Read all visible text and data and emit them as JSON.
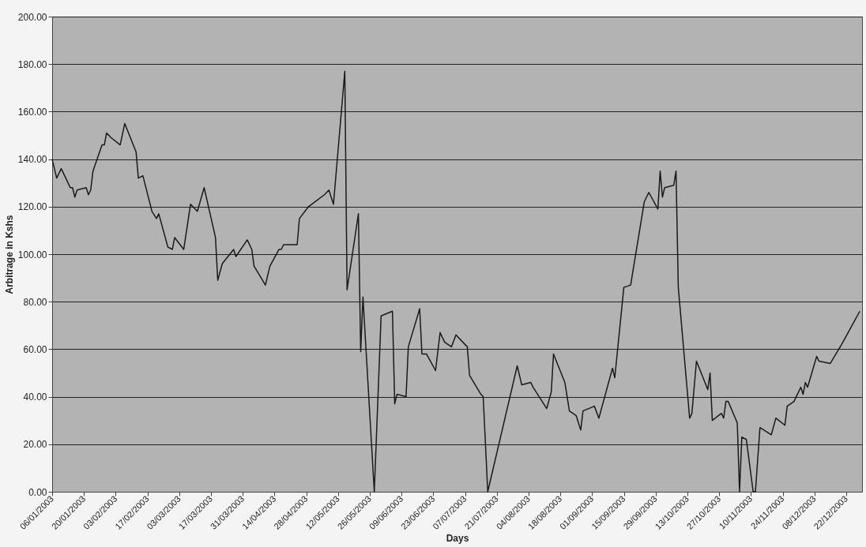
{
  "chart_data": {
    "type": "line",
    "xlabel": "Days",
    "ylabel": "Arbitrage in Kshs",
    "x": [
      "2003-01-06",
      "2003-01-08",
      "2003-01-10",
      "2003-01-12",
      "2003-01-14",
      "2003-01-15",
      "2003-01-16",
      "2003-01-17",
      "2003-01-21",
      "2003-01-22",
      "2003-01-23",
      "2003-01-24",
      "2003-01-28",
      "2003-01-29",
      "2003-01-30",
      "2003-02-01",
      "2003-02-05",
      "2003-02-07",
      "2003-02-12",
      "2003-02-13",
      "2003-02-15",
      "2003-02-19",
      "2003-02-21",
      "2003-02-22",
      "2003-02-26",
      "2003-02-28",
      "2003-03-01",
      "2003-03-05",
      "2003-03-08",
      "2003-03-11",
      "2003-03-14",
      "2003-03-19",
      "2003-03-20",
      "2003-03-22",
      "2003-03-27",
      "2003-03-28",
      "2003-04-02",
      "2003-04-04",
      "2003-04-05",
      "2003-04-10",
      "2003-04-12",
      "2003-04-16",
      "2003-04-17",
      "2003-04-18",
      "2003-04-24",
      "2003-04-25",
      "2003-04-29",
      "2003-05-06",
      "2003-05-08",
      "2003-05-10",
      "2003-05-15",
      "2003-05-16",
      "2003-05-21",
      "2003-05-22",
      "2003-05-23",
      "2003-05-28",
      "2003-05-31",
      "2003-06-05",
      "2003-06-06",
      "2003-06-07",
      "2003-06-11",
      "2003-06-12",
      "2003-06-17",
      "2003-06-18",
      "2003-06-20",
      "2003-06-24",
      "2003-06-26",
      "2003-06-28",
      "2003-07-01",
      "2003-07-03",
      "2003-07-06",
      "2003-07-08",
      "2003-07-09",
      "2003-07-14",
      "2003-07-15",
      "2003-07-17",
      "2003-07-30",
      "2003-08-01",
      "2003-08-05",
      "2003-08-06",
      "2003-08-12",
      "2003-08-14",
      "2003-08-15",
      "2003-08-20",
      "2003-08-22",
      "2003-08-25",
      "2003-08-27",
      "2003-08-28",
      "2003-09-02",
      "2003-09-04",
      "2003-09-10",
      "2003-09-11",
      "2003-09-15",
      "2003-09-18",
      "2003-09-24",
      "2003-09-26",
      "2003-09-30",
      "2003-10-01",
      "2003-10-02",
      "2003-10-03",
      "2003-10-07",
      "2003-10-08",
      "2003-10-09",
      "2003-10-14",
      "2003-10-15",
      "2003-10-17",
      "2003-10-22",
      "2003-10-23",
      "2003-10-24",
      "2003-10-28",
      "2003-10-29",
      "2003-10-30",
      "2003-10-31",
      "2003-11-04",
      "2003-11-05",
      "2003-11-06",
      "2003-11-08",
      "2003-11-11",
      "2003-11-12",
      "2003-11-14",
      "2003-11-19",
      "2003-11-21",
      "2003-11-25",
      "2003-11-26",
      "2003-11-29",
      "2003-12-02",
      "2003-12-03",
      "2003-12-04",
      "2003-12-05",
      "2003-12-09",
      "2003-12-10",
      "2003-12-15",
      "2003-12-20",
      "2003-12-24",
      "2003-12-28"
    ],
    "series": [
      {
        "color": "#1a1a1a",
        "values": [
          140,
          132,
          136,
          132,
          128,
          128,
          124,
          127,
          128,
          125,
          127,
          135,
          146,
          146,
          151,
          149,
          146,
          155,
          143,
          132,
          133,
          118,
          115,
          117,
          103,
          102,
          107,
          102,
          121,
          118,
          128,
          107,
          89,
          96,
          102,
          99,
          106,
          102,
          95,
          87,
          95,
          102,
          102,
          104,
          104,
          115,
          120,
          125,
          127,
          121,
          177,
          85,
          117,
          59,
          82,
          0,
          74,
          76,
          37,
          41,
          40,
          61,
          77,
          58,
          58,
          51,
          67,
          63,
          61,
          66,
          63,
          61,
          49,
          41,
          40,
          0,
          53,
          45,
          46,
          44,
          35,
          42,
          58,
          46,
          34,
          32,
          26,
          34,
          36,
          31,
          52,
          48,
          86,
          87,
          122,
          126,
          119,
          135,
          124,
          128,
          129,
          135,
          86,
          31,
          33,
          55,
          43,
          50,
          30,
          33,
          31,
          38,
          38,
          29,
          0,
          23,
          22,
          0,
          0,
          27,
          24,
          31,
          28,
          36,
          38,
          44,
          41,
          46,
          44,
          57,
          55,
          54,
          62,
          69,
          76
        ]
      }
    ],
    "xlim": [
      "2003-01-06",
      "2003-12-29"
    ],
    "xticks": [
      {
        "value": "2003-01-06",
        "label": "06/01/2003"
      },
      {
        "value": "2003-01-20",
        "label": "20/01/2003"
      },
      {
        "value": "2003-02-03",
        "label": "03/02/2003"
      },
      {
        "value": "2003-02-17",
        "label": "17/02/2003"
      },
      {
        "value": "2003-03-03",
        "label": "03/03/2003"
      },
      {
        "value": "2003-03-17",
        "label": "17/03/2003"
      },
      {
        "value": "2003-03-31",
        "label": "31/03/2003"
      },
      {
        "value": "2003-04-14",
        "label": "14/04/2003"
      },
      {
        "value": "2003-04-28",
        "label": "28/04/2003"
      },
      {
        "value": "2003-05-12",
        "label": "12/05/2003"
      },
      {
        "value": "2003-05-26",
        "label": "26/05/2003"
      },
      {
        "value": "2003-06-09",
        "label": "09/06/2003"
      },
      {
        "value": "2003-06-23",
        "label": "23/06/2003"
      },
      {
        "value": "2003-07-07",
        "label": "07/07/2003"
      },
      {
        "value": "2003-07-21",
        "label": "21/07/2003"
      },
      {
        "value": "2003-08-04",
        "label": "04/08/2003"
      },
      {
        "value": "2003-08-18",
        "label": "18/08/2003"
      },
      {
        "value": "2003-09-01",
        "label": "01/09/2003"
      },
      {
        "value": "2003-09-15",
        "label": "15/09/2003"
      },
      {
        "value": "2003-09-29",
        "label": "29/09/2003"
      },
      {
        "value": "2003-10-13",
        "label": "13/10/2003"
      },
      {
        "value": "2003-10-27",
        "label": "27/10/2003"
      },
      {
        "value": "2003-11-10",
        "label": "10/11/2003"
      },
      {
        "value": "2003-11-24",
        "label": "24/11/2003"
      },
      {
        "value": "2003-12-08",
        "label": "08/12/2003"
      },
      {
        "value": "2003-12-22",
        "label": "22/12/2003"
      }
    ],
    "ylim": [
      0,
      200
    ],
    "yticks": [
      {
        "value": 0,
        "label": "0.00"
      },
      {
        "value": 20,
        "label": "20.00"
      },
      {
        "value": 40,
        "label": "40.00"
      },
      {
        "value": 60,
        "label": "60.00"
      },
      {
        "value": 80,
        "label": "80.00"
      },
      {
        "value": 100,
        "label": "100.00"
      },
      {
        "value": 120,
        "label": "120.00"
      },
      {
        "value": 140,
        "label": "140.00"
      },
      {
        "value": 160,
        "label": "160.00"
      },
      {
        "value": 180,
        "label": "180.00"
      },
      {
        "value": 200,
        "label": "200.00"
      }
    ],
    "grid": "y"
  }
}
